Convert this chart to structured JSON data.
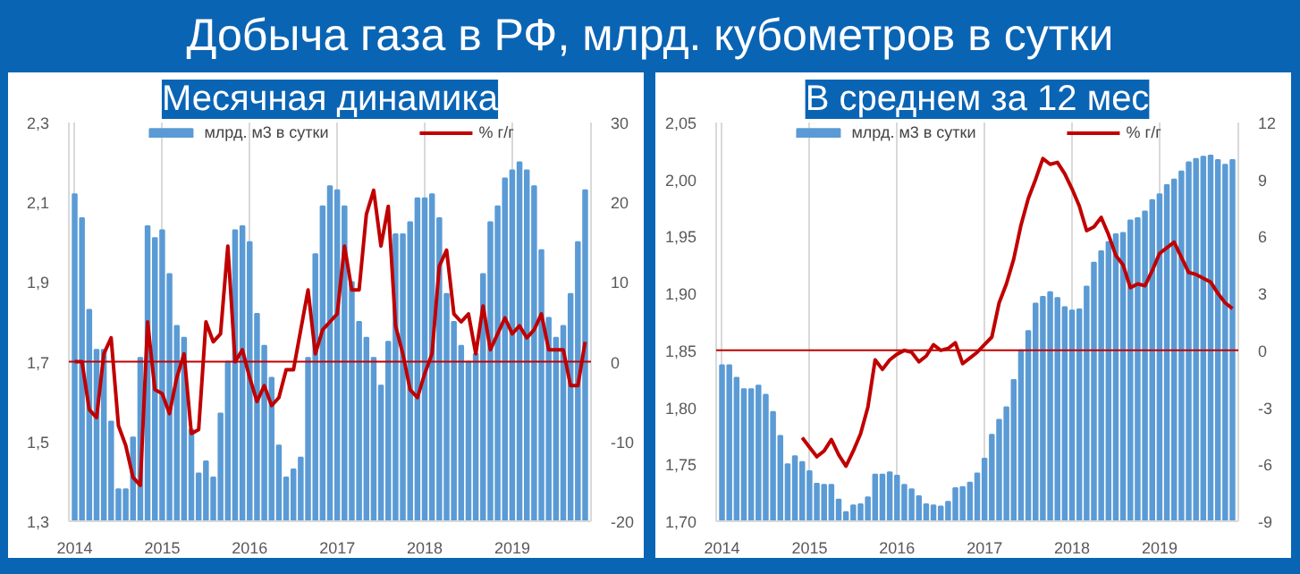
{
  "chart_data": [
    {
      "type": "bar",
      "title": "Добыча газа в РФ, млрд. кубометров в сутки",
      "subtitle": "Месячная динамика",
      "categories": [
        "2014",
        null,
        null,
        null,
        null,
        null,
        null,
        null,
        null,
        null,
        null,
        null,
        "2015",
        null,
        null,
        null,
        null,
        null,
        null,
        null,
        null,
        null,
        null,
        null,
        "2016",
        null,
        null,
        null,
        null,
        null,
        null,
        null,
        null,
        null,
        null,
        null,
        "2017",
        null,
        null,
        null,
        null,
        null,
        null,
        null,
        null,
        null,
        null,
        null,
        "2018",
        null,
        null,
        null,
        null,
        null,
        null,
        null,
        null,
        null,
        null,
        null,
        "2019",
        null,
        null,
        null,
        null,
        null,
        null,
        null,
        null,
        null,
        null
      ],
      "series": [
        {
          "name": "млрд. м3 в сутки",
          "color": "#5b9bd5",
          "values": [
            2.12,
            2.06,
            1.83,
            1.73,
            1.73,
            1.55,
            1.38,
            1.38,
            1.51,
            1.71,
            2.04,
            2.01,
            2.03,
            1.92,
            1.79,
            1.76,
            1.53,
            1.42,
            1.45,
            1.41,
            1.57,
            1.7,
            2.03,
            2.04,
            2.0,
            1.82,
            1.74,
            1.66,
            1.49,
            1.41,
            1.43,
            1.46,
            1.71,
            1.97,
            2.09,
            2.14,
            2.13,
            2.09,
            1.9,
            1.8,
            1.76,
            1.71,
            1.64,
            1.75,
            2.02,
            2.02,
            2.05,
            2.11,
            2.11,
            2.12,
            2.06,
            1.87,
            1.8,
            1.74,
            1.7,
            1.72,
            1.92,
            2.05,
            2.09,
            2.16,
            2.18,
            2.2,
            2.18,
            2.14,
            1.98,
            1.81,
            1.76,
            1.79,
            1.87,
            2.0,
            2.13
          ]
        },
        {
          "name": "% г/г",
          "type": "line",
          "axis": "y2",
          "color": "#c00000",
          "values": [
            0,
            0,
            -6,
            -7,
            1,
            3,
            -8,
            -10.5,
            -14.5,
            -15.5,
            5,
            -3.5,
            -4,
            -6.5,
            -2,
            1,
            -9,
            -8.5,
            5,
            2.5,
            3.5,
            14.5,
            0,
            1.5,
            -2,
            -5,
            -3,
            -5.5,
            -4.5,
            -1,
            -1,
            4,
            9,
            1,
            4,
            5,
            6,
            14.5,
            9,
            9,
            18.5,
            21.5,
            14.5,
            19.5,
            4.5,
            1,
            -3.5,
            -4.5,
            -1.5,
            1,
            12,
            14,
            6,
            5,
            6,
            1,
            7,
            1.5,
            3.5,
            5.5,
            3.5,
            4.5,
            3,
            4,
            6,
            1.5,
            1.5,
            1.5,
            -3,
            -3,
            2.5
          ]
        }
      ],
      "ylim": [
        1.3,
        2.3
      ],
      "yticks": [
        {
          "value": 1.3,
          "label": "1,3"
        },
        {
          "value": 1.5,
          "label": "1,5"
        },
        {
          "value": 1.7,
          "label": "1,7"
        },
        {
          "value": 1.9,
          "label": "1,9"
        },
        {
          "value": 2.1,
          "label": "2,1"
        },
        {
          "value": 2.3,
          "label": "2,3"
        }
      ],
      "y2lim": [
        -20,
        30
      ],
      "y2ticks": [
        -20,
        -10,
        0,
        10,
        20,
        30
      ],
      "ref_lines": [
        {
          "axis": "y2",
          "value": 0,
          "color": "#c00000"
        }
      ],
      "grid": "x",
      "legend": "top"
    },
    {
      "type": "bar",
      "subtitle": "В среднем за 12 мес",
      "categories": [
        "2014",
        null,
        null,
        null,
        null,
        null,
        null,
        null,
        null,
        null,
        null,
        null,
        "2015",
        null,
        null,
        null,
        null,
        null,
        null,
        null,
        null,
        null,
        null,
        null,
        "2016",
        null,
        null,
        null,
        null,
        null,
        null,
        null,
        null,
        null,
        null,
        null,
        "2017",
        null,
        null,
        null,
        null,
        null,
        null,
        null,
        null,
        null,
        null,
        null,
        "2018",
        null,
        null,
        null,
        null,
        null,
        null,
        null,
        null,
        null,
        null,
        null,
        "2019",
        null,
        null,
        null,
        null,
        null,
        null,
        null,
        null,
        null,
        null
      ],
      "series": [
        {
          "name": "млрд. м3 в сутки",
          "color": "#5b9bd5",
          "values": [
            1.837,
            1.837,
            1.826,
            1.816,
            1.816,
            1.819,
            1.811,
            1.796,
            1.775,
            1.75,
            1.757,
            1.752,
            1.744,
            1.733,
            1.732,
            1.732,
            1.719,
            1.708,
            1.714,
            1.715,
            1.721,
            1.741,
            1.741,
            1.743,
            1.74,
            1.732,
            1.728,
            1.722,
            1.715,
            1.714,
            1.713,
            1.717,
            1.729,
            1.73,
            1.734,
            1.742,
            1.755,
            1.776,
            1.789,
            1.8,
            1.824,
            1.85,
            1.867,
            1.891,
            1.897,
            1.901,
            1.896,
            1.888,
            1.885,
            1.886,
            1.906,
            1.927,
            1.937,
            1.945,
            1.952,
            1.953,
            1.964,
            1.966,
            1.972,
            1.982,
            1.987,
            1.995,
            2.0,
            2.007,
            2.015,
            2.018,
            2.02,
            2.021,
            2.017,
            2.013,
            2.017
          ]
        },
        {
          "name": "% г/г",
          "type": "line",
          "axis": "y2",
          "color": "#c00000",
          "values": [
            null,
            null,
            null,
            null,
            null,
            null,
            null,
            null,
            null,
            null,
            null,
            -4.6,
            -5.1,
            -5.6,
            -5.3,
            -4.7,
            -5.5,
            -6.1,
            -5.3,
            -4.4,
            -3.0,
            -0.5,
            -1.0,
            -0.5,
            -0.2,
            0,
            -0.1,
            -0.6,
            -0.3,
            0.3,
            0,
            0.1,
            0.4,
            -0.7,
            -0.4,
            -0.1,
            0.3,
            0.7,
            2.5,
            3.5,
            4.8,
            6.6,
            8.0,
            9.0,
            10.1,
            9.8,
            9.9,
            9.3,
            8.5,
            7.6,
            6.3,
            6.5,
            7.0,
            6.1,
            5.0,
            4.5,
            3.3,
            3.5,
            3.4,
            4.2,
            5.1,
            5.4,
            5.7,
            4.9,
            4.1,
            4.0,
            3.8,
            3.6,
            3.0,
            2.5,
            2.2
          ]
        }
      ],
      "ylim": [
        1.7,
        2.05
      ],
      "yticks": [
        {
          "value": 1.7,
          "label": "1,70"
        },
        {
          "value": 1.75,
          "label": "1,75"
        },
        {
          "value": 1.8,
          "label": "1,80"
        },
        {
          "value": 1.85,
          "label": "1,85"
        },
        {
          "value": 1.9,
          "label": "1,90"
        },
        {
          "value": 1.95,
          "label": "1,95"
        },
        {
          "value": 2.0,
          "label": "2,00"
        },
        {
          "value": 2.05,
          "label": "2,05"
        }
      ],
      "y2lim": [
        -9,
        12
      ],
      "y2ticks": [
        -9,
        -6,
        -3,
        0,
        3,
        6,
        9,
        12
      ],
      "ref_lines": [
        {
          "axis": "y2",
          "value": 0,
          "color": "#c00000"
        }
      ],
      "grid": "x",
      "legend": "top"
    }
  ]
}
